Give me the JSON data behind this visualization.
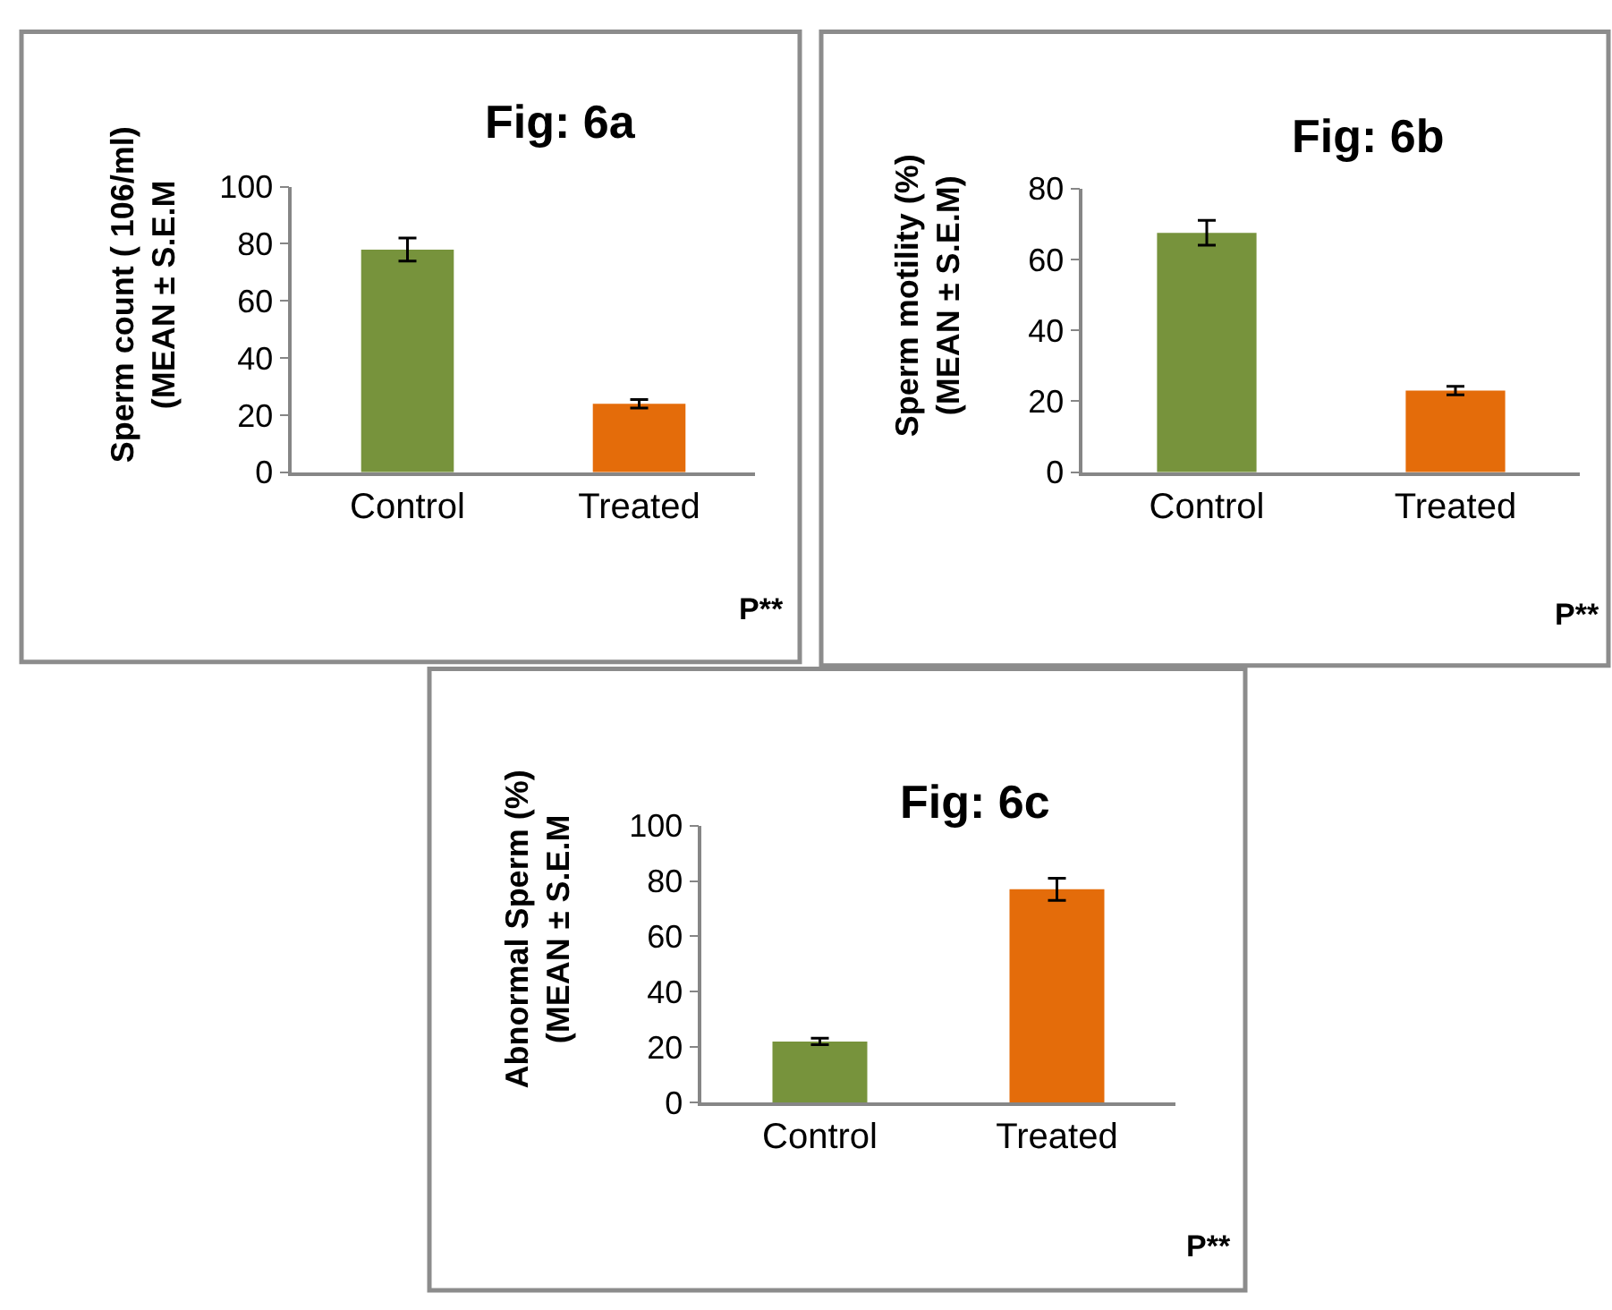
{
  "chart_data": [
    {
      "type": "bar",
      "title": "Fig: 6a",
      "ylabel": "Sperm count ( 106/ml)\n(MEAN ± S.E.M",
      "categories": [
        "Control",
        "Treated"
      ],
      "values": [
        78,
        24
      ],
      "errors": [
        4,
        1.5
      ],
      "colors": [
        "#77933c",
        "#e46c0a"
      ],
      "ylim": [
        0,
        100
      ],
      "yticks": [
        0,
        20,
        40,
        60,
        80,
        100
      ],
      "grid": false,
      "legend": false,
      "annotations": [
        "P**"
      ]
    },
    {
      "type": "bar",
      "title": "Fig: 6b",
      "ylabel": "Sperm motility (%)\n(MEAN ± S.E.M)",
      "categories": [
        "Control",
        "Treated"
      ],
      "values": [
        67.5,
        23
      ],
      "errors": [
        3.5,
        1.2
      ],
      "colors": [
        "#77933c",
        "#e46c0a"
      ],
      "ylim": [
        0,
        80
      ],
      "yticks": [
        0,
        20,
        40,
        60,
        80
      ],
      "grid": false,
      "legend": false,
      "annotations": [
        "P**"
      ]
    },
    {
      "type": "bar",
      "title": "Fig: 6c",
      "ylabel": "Abnormal Sperm (%)\n(MEAN ± S.E.M",
      "categories": [
        "Control",
        "Treated"
      ],
      "values": [
        22,
        77
      ],
      "errors": [
        1.2,
        4
      ],
      "colors": [
        "#77933c",
        "#e46c0a"
      ],
      "ylim": [
        0,
        100
      ],
      "yticks": [
        0,
        20,
        40,
        60,
        80,
        100
      ],
      "grid": false,
      "legend": false,
      "annotations": [
        "P**"
      ]
    }
  ]
}
